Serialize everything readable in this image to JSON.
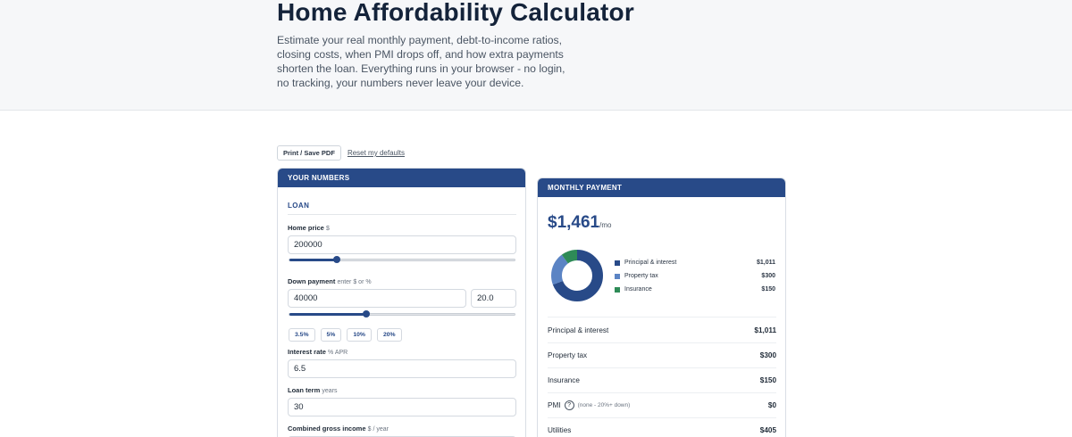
{
  "header": {
    "title": "Home Affordability Calculator",
    "description": "Estimate your real monthly payment, debt-to-income ratios, closing costs, when PMI drops off, and how extra payments shorten the loan. Everything runs in your browser - no login, no tracking, your numbers never leave your device."
  },
  "toolbar": {
    "print_label": "Print / Save PDF",
    "reset_label": "Reset my defaults"
  },
  "inputs_card": {
    "title": "YOUR NUMBERS",
    "section": "LOAN",
    "home_price": {
      "label": "Home price",
      "hint": "$",
      "value": "200000",
      "slider_fraction": 0.21
    },
    "down_payment": {
      "label": "Down payment",
      "hint": "enter $ or %",
      "value": "40000",
      "percent": "20.0",
      "slider_fraction": 0.34
    },
    "down_chips": [
      "3.5%",
      "5%",
      "10%",
      "20%"
    ],
    "interest_rate": {
      "label": "Interest rate",
      "hint": "% APR",
      "value": "6.5"
    },
    "loan_term": {
      "label": "Loan term",
      "hint": "years",
      "value": "30"
    },
    "income": {
      "label": "Combined gross income",
      "hint": "$ / year"
    }
  },
  "payment_card": {
    "title": "MONTHLY PAYMENT",
    "amount": "$1,461",
    "per": "/mo",
    "colors": {
      "principal": "#284a88",
      "tax": "#5b84c4",
      "insurance": "#2e8b57"
    },
    "legend": [
      {
        "label": "Principal & interest",
        "value": "$1,011",
        "amount": 1011
      },
      {
        "label": "Property tax",
        "value": "$300",
        "amount": 300
      },
      {
        "label": "Insurance",
        "value": "$150",
        "amount": 150
      }
    ],
    "rows": [
      {
        "label": "Principal & interest",
        "value": "$1,011"
      },
      {
        "label": "Property tax",
        "value": "$300"
      },
      {
        "label": "Insurance",
        "value": "$150"
      }
    ],
    "pmi": {
      "label": "PMI",
      "help": "?",
      "note": "(none - 20%+ down)",
      "value": "$0"
    },
    "utilities": {
      "label": "Utilities",
      "value": "$405"
    }
  }
}
